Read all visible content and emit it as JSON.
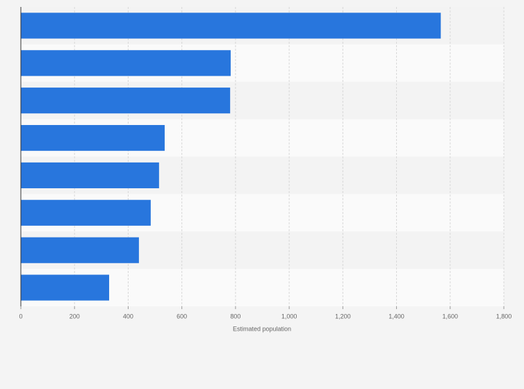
{
  "chart_data": {
    "type": "bar",
    "orientation": "horizontal",
    "values": [
      1565,
      782,
      780,
      536,
      515,
      484,
      440,
      329
    ],
    "color": "#2876dd",
    "xlabel": "Estimated population",
    "xlim": [
      0,
      1800
    ],
    "xticks": [
      0,
      200,
      400,
      600,
      800,
      {
        "value": 1000,
        "label": "1,000"
      },
      {
        "value": 1200,
        "label": "1,200"
      },
      {
        "value": 1400,
        "label": "1,400"
      },
      {
        "value": 1600,
        "label": "1,600"
      },
      {
        "value": 1800,
        "label": "1,800"
      }
    ],
    "grid": true
  }
}
